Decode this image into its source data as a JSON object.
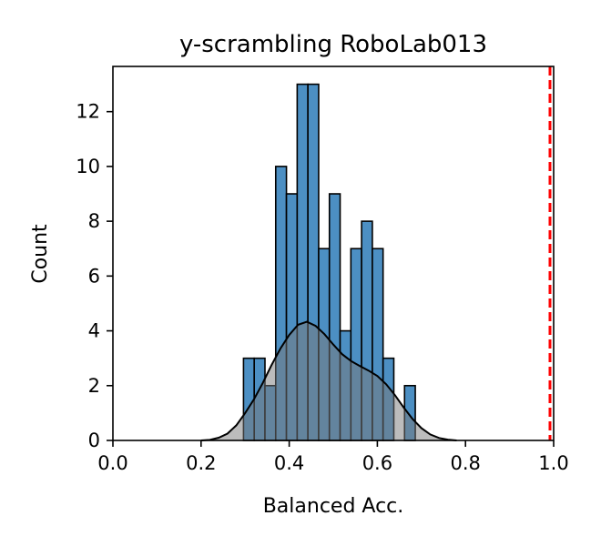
{
  "chart_data": {
    "type": "bar",
    "title": "y-scrambling RoboLab013",
    "xlabel": "Balanced Acc.",
    "ylabel": "Count",
    "xlim": [
      0.0,
      1.0
    ],
    "ylim": [
      0,
      13.65
    ],
    "xticks": [
      "0.0",
      "0.2",
      "0.4",
      "0.6",
      "0.8",
      "1.0"
    ],
    "yticks": [
      "0",
      "2",
      "4",
      "6",
      "8",
      "10",
      "12"
    ],
    "grid": false,
    "legend": "none",
    "histogram": {
      "bin_start": 0.2963,
      "bin_width": 0.02436,
      "counts": [
        3,
        3,
        2,
        10,
        9,
        13,
        13,
        7,
        9,
        4,
        7,
        8,
        7,
        3,
        0,
        2
      ]
    },
    "kde": {
      "x": [
        0.2,
        0.22,
        0.24,
        0.26,
        0.28,
        0.3,
        0.32,
        0.34,
        0.36,
        0.38,
        0.4,
        0.42,
        0.44,
        0.46,
        0.48,
        0.5,
        0.52,
        0.54,
        0.56,
        0.58,
        0.6,
        0.62,
        0.64,
        0.66,
        0.68,
        0.7,
        0.72,
        0.74,
        0.76,
        0.78
      ],
      "y": [
        0.0,
        0.02,
        0.1,
        0.25,
        0.55,
        1.0,
        1.5,
        2.1,
        2.75,
        3.35,
        3.85,
        4.22,
        4.33,
        4.18,
        3.88,
        3.5,
        3.15,
        2.9,
        2.72,
        2.55,
        2.35,
        2.05,
        1.65,
        1.2,
        0.78,
        0.45,
        0.22,
        0.09,
        0.03,
        0.0
      ]
    },
    "reference_line": {
      "x": 0.9917,
      "color": "#ff0000",
      "style": "dashed"
    },
    "colors": {
      "bar": "#4c8fc3",
      "bar_edge": "#000000",
      "kde_fill": "#7a7a7a",
      "kde_line": "#000000"
    }
  }
}
